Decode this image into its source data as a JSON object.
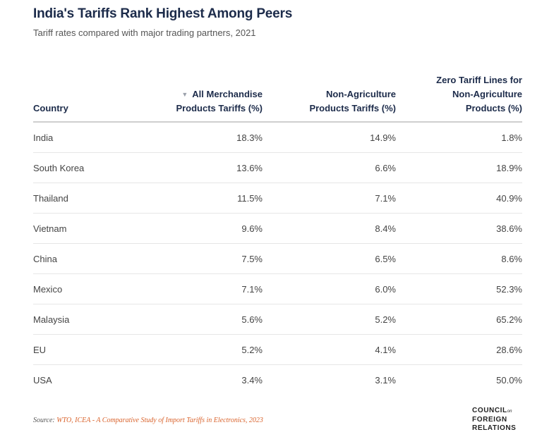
{
  "title": "India's Tariffs Rank Highest Among Peers",
  "subtitle": "Tariff rates compared with major trading partners, 2021",
  "chart_data": {
    "type": "table",
    "columns": [
      "Country",
      "All Merchandise Products Tariffs (%)",
      "Non-Agriculture Products Tariffs (%)",
      "Zero Tariff Lines for Non-Agriculture Products (%)"
    ],
    "sorted_by": "All Merchandise Products Tariffs (%)",
    "sort_direction": "descending",
    "rows": [
      {
        "country": "India",
        "all_merchandise": "18.3%",
        "non_agriculture": "14.9%",
        "zero_tariff_lines": "1.8%"
      },
      {
        "country": "South Korea",
        "all_merchandise": "13.6%",
        "non_agriculture": "6.6%",
        "zero_tariff_lines": "18.9%"
      },
      {
        "country": "Thailand",
        "all_merchandise": "11.5%",
        "non_agriculture": "7.1%",
        "zero_tariff_lines": "40.9%"
      },
      {
        "country": "Vietnam",
        "all_merchandise": "9.6%",
        "non_agriculture": "8.4%",
        "zero_tariff_lines": "38.6%"
      },
      {
        "country": "China",
        "all_merchandise": "7.5%",
        "non_agriculture": "6.5%",
        "zero_tariff_lines": "8.6%"
      },
      {
        "country": "Mexico",
        "all_merchandise": "7.1%",
        "non_agriculture": "6.0%",
        "zero_tariff_lines": "52.3%"
      },
      {
        "country": "Malaysia",
        "all_merchandise": "5.6%",
        "non_agriculture": "5.2%",
        "zero_tariff_lines": "65.2%"
      },
      {
        "country": "EU",
        "all_merchandise": "5.2%",
        "non_agriculture": "4.1%",
        "zero_tariff_lines": "28.6%"
      },
      {
        "country": "USA",
        "all_merchandise": "3.4%",
        "non_agriculture": "3.1%",
        "zero_tariff_lines": "50.0%"
      }
    ]
  },
  "header": {
    "country": "Country",
    "all_line1": "All Merchandise",
    "all_line2": "Products Tariffs (%)",
    "nonag_line1": "Non-Agriculture",
    "nonag_line2": "Products Tariffs (%)",
    "zero_line1": "Zero Tariff Lines for",
    "zero_line2": "Non-Agriculture",
    "zero_line3": "Products (%)",
    "sort_icon": "sort-descending-icon"
  },
  "source": {
    "prefix": "Source: ",
    "text": "WTO, ICEA - A Comparative Study of Import Tariffs in Electronics, 2023"
  },
  "logo": {
    "line1": "COUNCIL",
    "on": "on",
    "line2": "FOREIGN",
    "line3": "RELATIONS"
  },
  "colors": {
    "title": "#1c2b4a",
    "source_link": "#d9622b",
    "divider": "#cfcfcf"
  }
}
